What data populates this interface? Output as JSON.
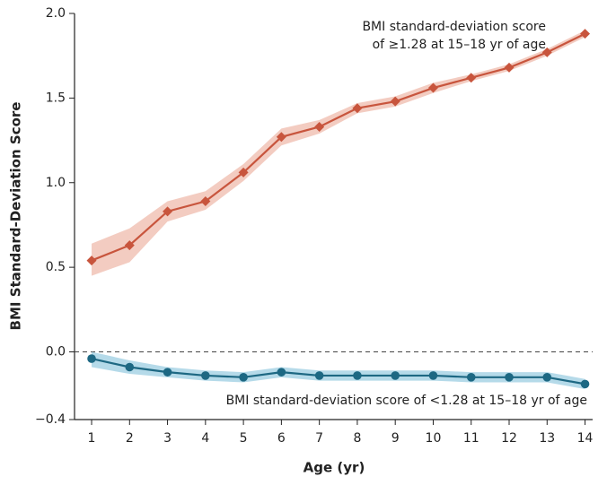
{
  "chart_data": {
    "type": "line",
    "x_label": "Age (yr)",
    "y_label": "BMI Standard-Deviation Score",
    "x": [
      1,
      2,
      3,
      4,
      5,
      6,
      7,
      8,
      9,
      10,
      11,
      12,
      13,
      14
    ],
    "xlim": [
      0.55,
      14.2
    ],
    "xticks": [
      1,
      2,
      3,
      4,
      5,
      6,
      7,
      8,
      9,
      10,
      11,
      12,
      13,
      14
    ],
    "ylim": [
      -0.4,
      2.0
    ],
    "yticks": [
      {
        "value": -0.4,
        "label": "−0.4"
      },
      {
        "value": 0,
        "label": "0.0"
      },
      {
        "value": 0.5,
        "label": "0.5"
      },
      {
        "value": 1.0,
        "label": "1.0"
      },
      {
        "value": 1.5,
        "label": "1.5"
      },
      {
        "value": 2.0,
        "label": "2.0"
      }
    ],
    "reference_line": 0,
    "series": [
      {
        "name": "BMI standard-deviation score of ≥1.28 at 15–18 yr of age",
        "name_lines": [
          "BMI standard-deviation score",
          "of ≥1.28 at 15–18 yr of age"
        ],
        "color": "#c8553d",
        "band_color": "#f1c3b6",
        "marker": "diamond",
        "values": [
          0.54,
          0.63,
          0.83,
          0.89,
          1.06,
          1.27,
          1.33,
          1.44,
          1.48,
          1.56,
          1.62,
          1.68,
          1.77,
          1.88
        ],
        "lower": [
          0.45,
          0.53,
          0.77,
          0.84,
          1.01,
          1.22,
          1.29,
          1.41,
          1.45,
          1.53,
          1.6,
          1.66,
          1.75,
          1.86
        ],
        "upper": [
          0.64,
          0.73,
          0.89,
          0.95,
          1.11,
          1.32,
          1.37,
          1.47,
          1.51,
          1.59,
          1.64,
          1.7,
          1.79,
          1.9
        ]
      },
      {
        "name": "BMI standard-deviation score of <1.28 at 15–18 yr of age",
        "color": "#1d6883",
        "band_color": "#a8d3e5",
        "marker": "circle",
        "values": [
          -0.04,
          -0.09,
          -0.12,
          -0.14,
          -0.15,
          -0.12,
          -0.14,
          -0.14,
          -0.14,
          -0.14,
          -0.15,
          -0.15,
          -0.15,
          -0.19
        ],
        "lower": [
          -0.09,
          -0.13,
          -0.15,
          -0.17,
          -0.18,
          -0.15,
          -0.17,
          -0.17,
          -0.17,
          -0.17,
          -0.18,
          -0.18,
          -0.18,
          -0.22
        ],
        "upper": [
          0.0,
          -0.05,
          -0.09,
          -0.11,
          -0.12,
          -0.09,
          -0.11,
          -0.11,
          -0.11,
          -0.11,
          -0.12,
          -0.12,
          -0.12,
          -0.16
        ]
      }
    ]
  }
}
